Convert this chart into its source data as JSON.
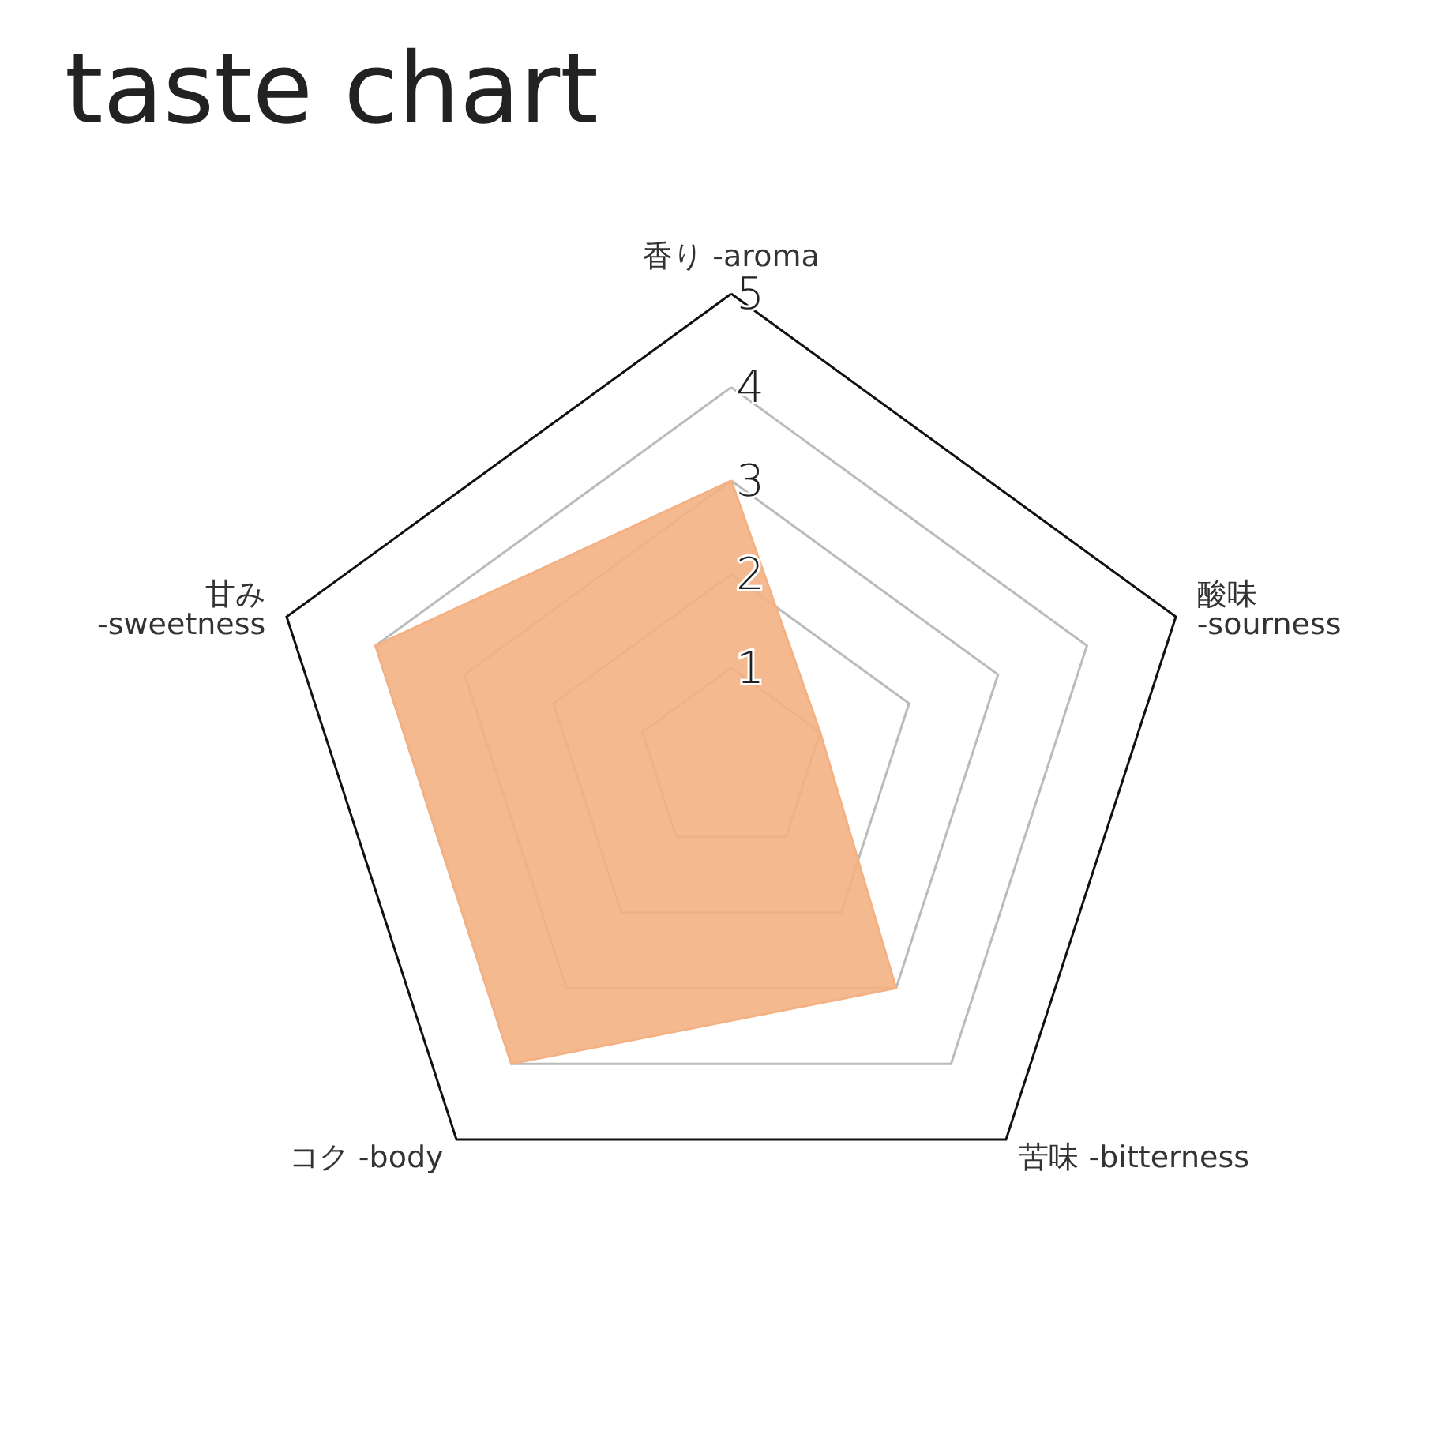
{
  "chart_data": {
    "type": "radar",
    "title": "taste chart",
    "categories": [
      "香り -aroma",
      "酸味\n-sourness",
      "苦味 -bitterness",
      "コク -body",
      "甘み\n-sweetness"
    ],
    "series": [
      {
        "color": "#f4b183",
        "values": [
          3,
          1,
          3,
          4,
          4
        ]
      }
    ],
    "ylim": [
      0,
      5
    ],
    "yticks": [
      1,
      2,
      3,
      4,
      5
    ]
  }
}
